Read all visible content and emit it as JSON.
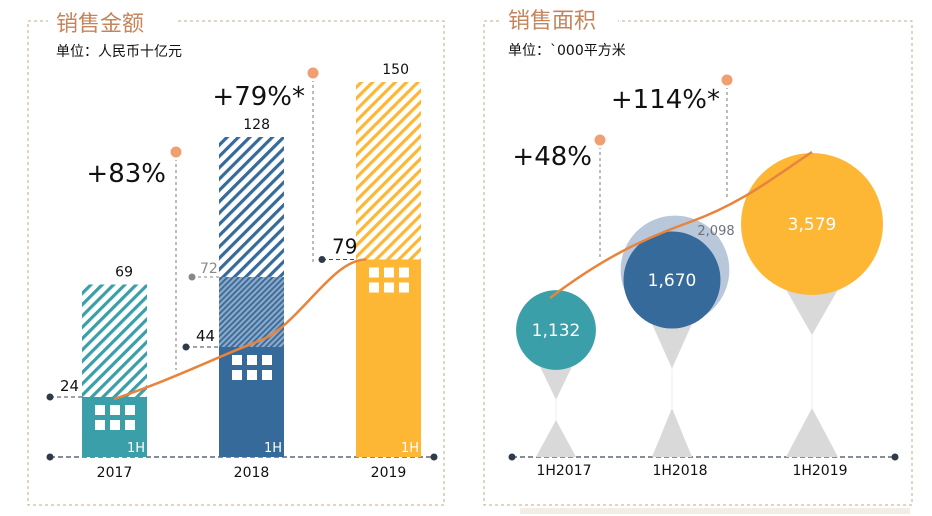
{
  "left_panel": {
    "title": "销售金额",
    "unit": "单位：人民币十亿元"
  },
  "right_panel": {
    "title": "销售面积",
    "unit": "单位：`000平方米"
  },
  "colors": {
    "teal": "#3a9fa8",
    "blue": "#356a9b",
    "yellow": "#fdb734",
    "orange": "#e8843c",
    "light_blue": "#b8c7da",
    "gray": "#d9d9d9",
    "title": "#c4855c",
    "border": "#c9a88a"
  },
  "chart_data": [
    {
      "type": "bar",
      "categories": [
        "2017",
        "2018",
        "2019"
      ],
      "series": [
        {
          "name": "1H",
          "values": [
            24,
            44,
            79
          ]
        }
      ],
      "full_year_values": [
        69,
        128,
        150
      ],
      "mid_marker_2018": 72,
      "growth_labels": [
        "+83%",
        "+79%*"
      ],
      "half_label": "1H",
      "title": "销售金额",
      "ylabel": "单位：人民币十亿元",
      "ylim": [
        0,
        160
      ]
    },
    {
      "type": "scatter",
      "categories": [
        "1H2017",
        "1H2018",
        "1H2019"
      ],
      "values": [
        1132,
        1670,
        3579
      ],
      "value_labels": [
        "1,132",
        "1,670",
        "3,579"
      ],
      "extra_values": [
        {
          "category": "1H2018",
          "value": 2098,
          "label": "2,098"
        }
      ],
      "growth_labels": [
        "+48%",
        "+114%*"
      ],
      "title": "销售面积",
      "ylabel": "单位：`000平方米"
    }
  ]
}
